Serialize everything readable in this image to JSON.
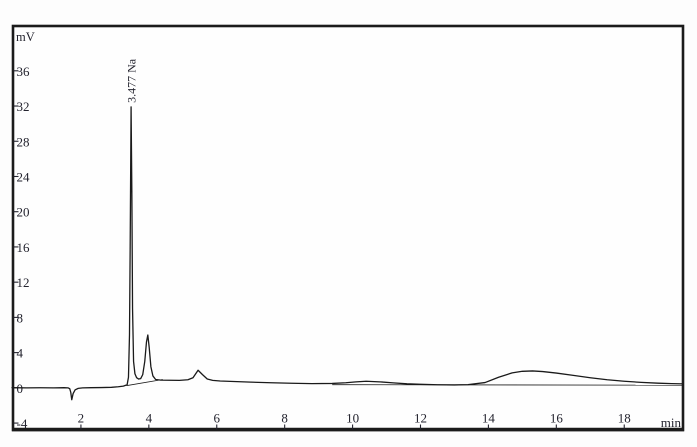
{
  "figure": {
    "y_axis_unit": "mV",
    "x_axis_unit": "min"
  },
  "colors": {
    "ink": "#23232e",
    "trace": "#1a1a1a",
    "frame": "#1b1b1b",
    "plot_background": "#fefefe",
    "page_background": "#fdfdfd"
  },
  "chart_data": {
    "type": "line",
    "kind": "chromatogram",
    "title": "",
    "xlabel": "min",
    "ylabel": "mV",
    "xlim": [
      -0.03,
      19.76
    ],
    "ylim": [
      -4.9,
      41.2
    ],
    "x_ticks": [
      2,
      4,
      6,
      8,
      10,
      12,
      14,
      16,
      18
    ],
    "y_ticks": [
      36,
      32,
      28,
      24,
      20,
      16,
      12,
      8,
      4,
      0,
      -4
    ],
    "grid": false,
    "legend": null,
    "peak_annotation": {
      "label": "3.477 Na",
      "retention_time_min": 3.477,
      "apex_mv": 31.9
    },
    "features": {
      "negative_dip": {
        "time_min": 1.73,
        "depth_mv": -1.35
      },
      "secondary_peak": {
        "time_min": 3.97,
        "height_mv": 6.0
      },
      "minor_peak": {
        "time_min": 5.45,
        "height_mv": 2.0
      },
      "baseline_bump": {
        "time_min": 10.4,
        "height_mv": 0.75
      },
      "broad_hump": {
        "time_min": 15.2,
        "height_mv": 1.92
      }
    },
    "trace_mv_vs_min": [
      [
        -0.03,
        0.02
      ],
      [
        0.4,
        0.0
      ],
      [
        0.8,
        0.01
      ],
      [
        1.2,
        0.0
      ],
      [
        1.5,
        0.02
      ],
      [
        1.62,
        0.0
      ],
      [
        1.67,
        -0.1
      ],
      [
        1.7,
        -0.5
      ],
      [
        1.73,
        -1.35
      ],
      [
        1.77,
        -0.65
      ],
      [
        1.83,
        -0.22
      ],
      [
        1.92,
        -0.06
      ],
      [
        2.05,
        0.0
      ],
      [
        2.3,
        0.02
      ],
      [
        2.6,
        0.03
      ],
      [
        2.9,
        0.06
      ],
      [
        3.1,
        0.12
      ],
      [
        3.25,
        0.2
      ],
      [
        3.36,
        0.35
      ],
      [
        3.4,
        1.2
      ],
      [
        3.43,
        6.0
      ],
      [
        3.45,
        16.0
      ],
      [
        3.477,
        31.9
      ],
      [
        3.5,
        22.0
      ],
      [
        3.52,
        9.0
      ],
      [
        3.55,
        3.0
      ],
      [
        3.59,
        1.6
      ],
      [
        3.64,
        1.15
      ],
      [
        3.7,
        1.0
      ],
      [
        3.76,
        1.05
      ],
      [
        3.82,
        1.5
      ],
      [
        3.88,
        3.0
      ],
      [
        3.93,
        5.2
      ],
      [
        3.97,
        6.0
      ],
      [
        4.01,
        4.6
      ],
      [
        4.06,
        2.4
      ],
      [
        4.12,
        1.35
      ],
      [
        4.2,
        0.95
      ],
      [
        4.35,
        0.88
      ],
      [
        4.6,
        0.86
      ],
      [
        4.9,
        0.85
      ],
      [
        5.15,
        0.92
      ],
      [
        5.3,
        1.15
      ],
      [
        5.45,
        2.0
      ],
      [
        5.58,
        1.5
      ],
      [
        5.72,
        1.0
      ],
      [
        5.88,
        0.85
      ],
      [
        6.1,
        0.78
      ],
      [
        6.5,
        0.72
      ],
      [
        7.0,
        0.65
      ],
      [
        7.6,
        0.58
      ],
      [
        8.2,
        0.52
      ],
      [
        8.8,
        0.48
      ],
      [
        9.4,
        0.5
      ],
      [
        9.8,
        0.58
      ],
      [
        10.1,
        0.68
      ],
      [
        10.4,
        0.75
      ],
      [
        10.8,
        0.68
      ],
      [
        11.2,
        0.56
      ],
      [
        11.6,
        0.46
      ],
      [
        12.0,
        0.4
      ],
      [
        12.5,
        0.35
      ],
      [
        13.0,
        0.33
      ],
      [
        13.4,
        0.37
      ],
      [
        13.9,
        0.6
      ],
      [
        14.3,
        1.2
      ],
      [
        14.7,
        1.7
      ],
      [
        15.0,
        1.88
      ],
      [
        15.3,
        1.92
      ],
      [
        15.6,
        1.85
      ],
      [
        16.0,
        1.68
      ],
      [
        16.5,
        1.42
      ],
      [
        17.0,
        1.15
      ],
      [
        17.5,
        0.92
      ],
      [
        18.0,
        0.75
      ],
      [
        18.5,
        0.62
      ],
      [
        19.0,
        0.53
      ],
      [
        19.4,
        0.48
      ],
      [
        19.74,
        0.45
      ]
    ],
    "integration_baselines": [
      [
        [
          3.34,
          0.25
        ],
        [
          4.41,
          0.95
        ]
      ],
      [
        [
          9.4,
          0.36
        ],
        [
          19.74,
          0.3
        ]
      ]
    ]
  }
}
